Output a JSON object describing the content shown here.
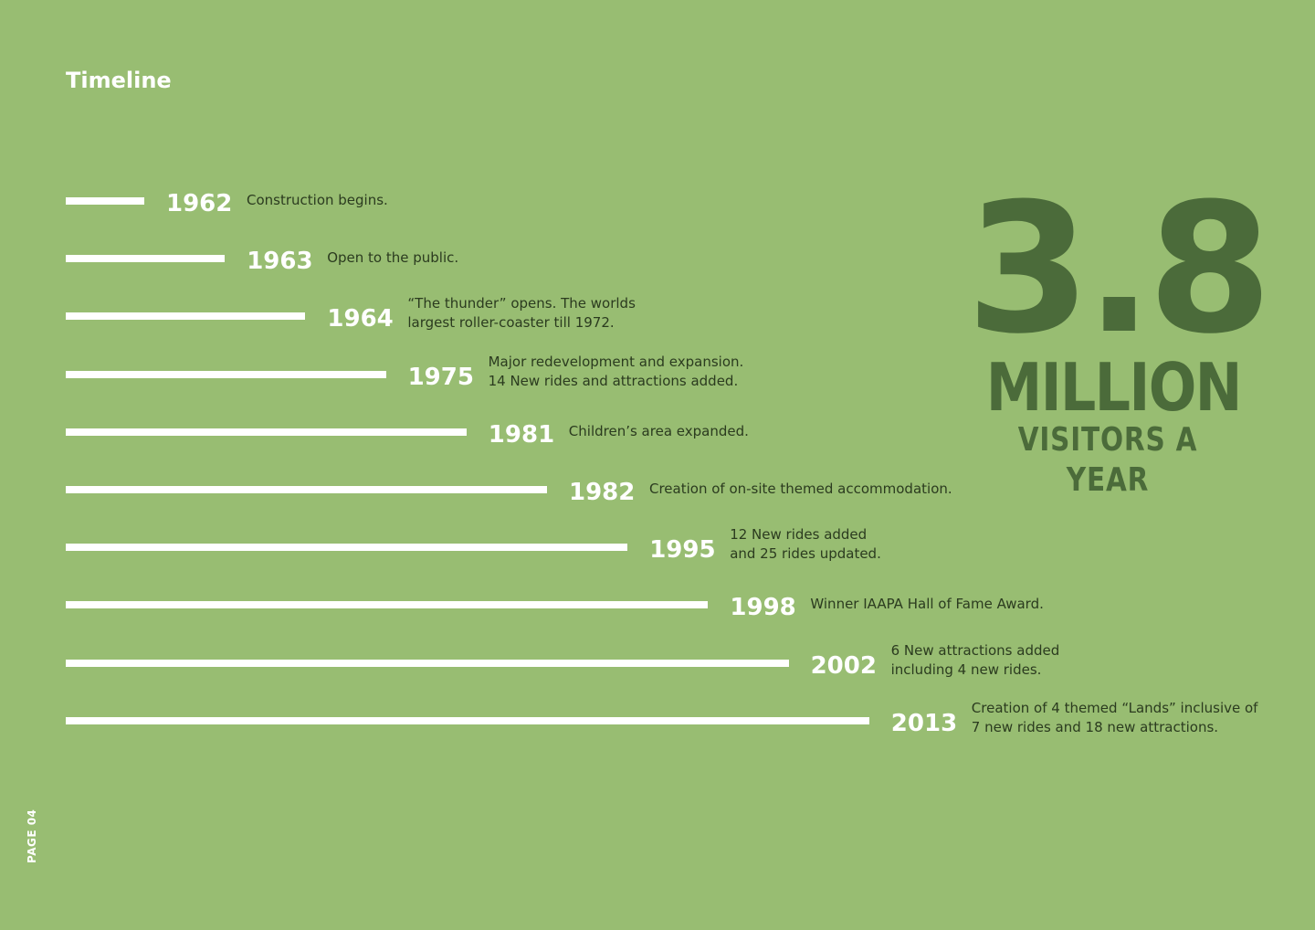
{
  "page": {
    "title": "Timeline",
    "page_label": "PAGE 04"
  },
  "colors": {
    "background": "#98bd72",
    "bars": "#ffffff",
    "years": "#ffffff",
    "descriptions": "#2b3b1f",
    "stat": "#4b6b3a"
  },
  "timeline": [
    {
      "year": "1962",
      "lines": [
        "Construction begins."
      ]
    },
    {
      "year": "1963",
      "lines": [
        "Open to the public."
      ]
    },
    {
      "year": "1964",
      "lines": [
        "“The thunder” opens. The worlds",
        "largest roller-coaster till 1972."
      ]
    },
    {
      "year": "1975",
      "lines": [
        "Major redevelopment and expansion.",
        "14 New rides and attractions added."
      ]
    },
    {
      "year": "1981",
      "lines": [
        "Children’s area expanded."
      ]
    },
    {
      "year": "1982",
      "lines": [
        "Creation of on-site themed accommodation."
      ]
    },
    {
      "year": "1995",
      "lines": [
        "12 New rides added",
        "and 25 rides updated."
      ]
    },
    {
      "year": "1998",
      "lines": [
        "Winner IAAPA Hall of Fame Award."
      ]
    },
    {
      "year": "2002",
      "lines": [
        "6 New attractions added",
        "including 4 new rides."
      ]
    },
    {
      "year": "2013",
      "lines": [
        "Creation of 4 themed “Lands” inclusive of",
        "7 new rides and 18 new attractions."
      ]
    }
  ],
  "stat": {
    "number": "3.8",
    "unit": "MILLION",
    "caption": "VISITORS A YEAR"
  }
}
